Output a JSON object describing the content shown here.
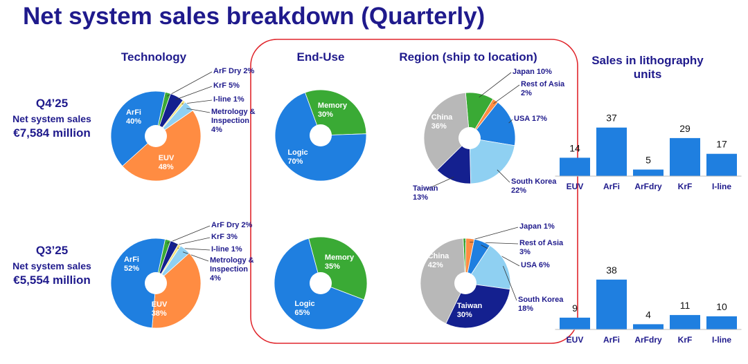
{
  "title": "Net system sales breakdown (Quarterly)",
  "columns": [
    "Technology",
    "End-Use",
    "Region (ship to location)",
    "Sales in lithography units"
  ],
  "rows": [
    {
      "quarter": "Q4’25",
      "label": "Net system sales",
      "amount": "€7,584 million"
    },
    {
      "quarter": "Q3’25",
      "label": "Net system sales",
      "amount": "€5,554 million"
    }
  ],
  "chart_data": [
    {
      "type": "pie",
      "categories": [
        "ArF Dry",
        "KrF",
        "I-line",
        "Metrology & Inspection",
        "EUV",
        "ArFi"
      ],
      "values": [
        2,
        5,
        1,
        4,
        48,
        40
      ],
      "value_labels": [
        "2%",
        "5%",
        "1%",
        "4%",
        "48%",
        "40%"
      ],
      "colors": [
        "#3aaa35",
        "#14208f",
        "#f3e27a",
        "#8fd0f2",
        "#ff8c42",
        "#1f7fe0"
      ]
    },
    {
      "type": "pie",
      "categories": [
        "Memory",
        "Logic"
      ],
      "values": [
        30,
        70
      ],
      "value_labels": [
        "30%",
        "70%"
      ],
      "colors": [
        "#3aaa35",
        "#1f7fe0"
      ]
    },
    {
      "type": "pie",
      "categories": [
        "Japan",
        "Rest of Asia",
        "USA",
        "South Korea",
        "Taiwan",
        "China"
      ],
      "values": [
        10,
        2,
        17,
        22,
        13,
        36
      ],
      "value_labels": [
        "10%",
        "2%",
        "17%",
        "22%",
        "13%",
        "36%"
      ],
      "colors": [
        "#3aaa35",
        "#ff8c42",
        "#1f7fe0",
        "#8fd0f2",
        "#14208f",
        "#b8b8b8"
      ]
    },
    {
      "type": "pie",
      "categories": [
        "ArF Dry",
        "KrF",
        "I-line",
        "Metrology & Inspection",
        "EUV",
        "ArFi"
      ],
      "values": [
        2,
        3,
        1,
        4,
        38,
        52
      ],
      "value_labels": [
        "2%",
        "3%",
        "1%",
        "4%",
        "38%",
        "52%"
      ],
      "colors": [
        "#3aaa35",
        "#14208f",
        "#f3e27a",
        "#8fd0f2",
        "#ff8c42",
        "#1f7fe0"
      ]
    },
    {
      "type": "pie",
      "categories": [
        "Memory",
        "Logic"
      ],
      "values": [
        35,
        65
      ],
      "value_labels": [
        "35%",
        "65%"
      ],
      "colors": [
        "#3aaa35",
        "#1f7fe0"
      ]
    },
    {
      "type": "pie",
      "categories": [
        "Japan",
        "Rest of Asia",
        "USA",
        "South Korea",
        "Taiwan",
        "China"
      ],
      "values": [
        1,
        3,
        6,
        18,
        30,
        42
      ],
      "value_labels": [
        "1%",
        "3%",
        "6%",
        "18%",
        "30%",
        "42%"
      ],
      "colors": [
        "#3aaa35",
        "#ff8c42",
        "#1f7fe0",
        "#8fd0f2",
        "#14208f",
        "#b8b8b8"
      ]
    },
    {
      "type": "bar",
      "categories": [
        "EUV",
        "ArFi",
        "ArFdry",
        "KrF",
        "I-line"
      ],
      "values": [
        14,
        37,
        5,
        29,
        17
      ],
      "color": "#1f7fe0"
    },
    {
      "type": "bar",
      "categories": [
        "EUV",
        "ArFi",
        "ArFdry",
        "KrF",
        "I-line"
      ],
      "values": [
        9,
        38,
        4,
        11,
        10
      ],
      "color": "#1f7fe0"
    }
  ]
}
